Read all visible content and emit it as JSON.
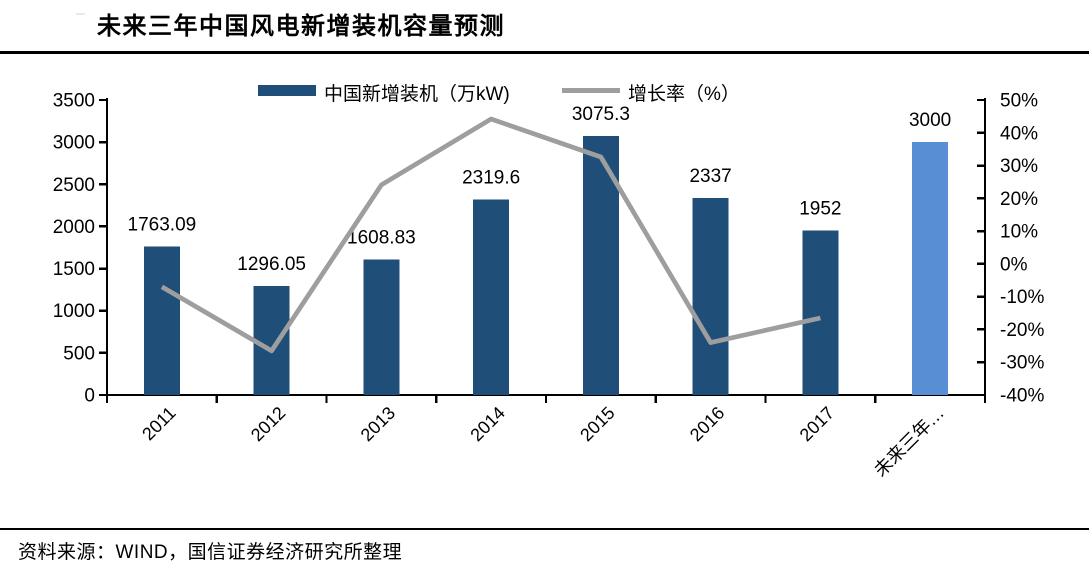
{
  "header": {
    "title": "未来三年中国风电新增装机容量预测"
  },
  "footer": {
    "source": "资料来源：WIND，国信证券经济研究所整理"
  },
  "legend": {
    "bar": {
      "label": "中国新增装机（万kW)",
      "color": "#1F4E79"
    },
    "line": {
      "label": "增长率（%）",
      "color": "#9E9E9E"
    }
  },
  "chart_data": {
    "type": "bar",
    "title": "未来三年中国风电新增装机容量预测",
    "categories": [
      "2011",
      "2012",
      "2013",
      "2014",
      "2015",
      "2016",
      "2017",
      "未来三年…"
    ],
    "series": [
      {
        "name": "中国新增装机（万kW)",
        "type": "bar",
        "axis": "left",
        "values": [
          1763.09,
          1296.05,
          1608.83,
          2319.6,
          3075.3,
          2337,
          1952,
          3000
        ],
        "labels": [
          "1763.09",
          "1296.05",
          "1608.83",
          "2319.6",
          "3075.3",
          "2337",
          "1952",
          "3000"
        ],
        "colors": [
          "#1F4E79",
          "#1F4E79",
          "#1F4E79",
          "#1F4E79",
          "#1F4E79",
          "#1F4E79",
          "#1F4E79",
          "#588ED4"
        ]
      },
      {
        "name": "增长率（%）",
        "type": "line",
        "axis": "right",
        "color": "#9E9E9E",
        "values": [
          -7,
          -26.5,
          24.1,
          44.2,
          32.6,
          -24,
          -16.5,
          null
        ]
      }
    ],
    "left_axis": {
      "min": 0,
      "max": 3500,
      "step": 500,
      "ticks": [
        "3500",
        "3000",
        "2500",
        "2000",
        "1500",
        "1000",
        "500",
        "0"
      ]
    },
    "right_axis": {
      "min": -40,
      "max": 50,
      "step": 10,
      "ticks": [
        "50%",
        "40%",
        "30%",
        "20%",
        "10%",
        "0%",
        "-10%",
        "-20%",
        "-30%",
        "-40%"
      ]
    },
    "grid": false,
    "legend_position": "top"
  }
}
